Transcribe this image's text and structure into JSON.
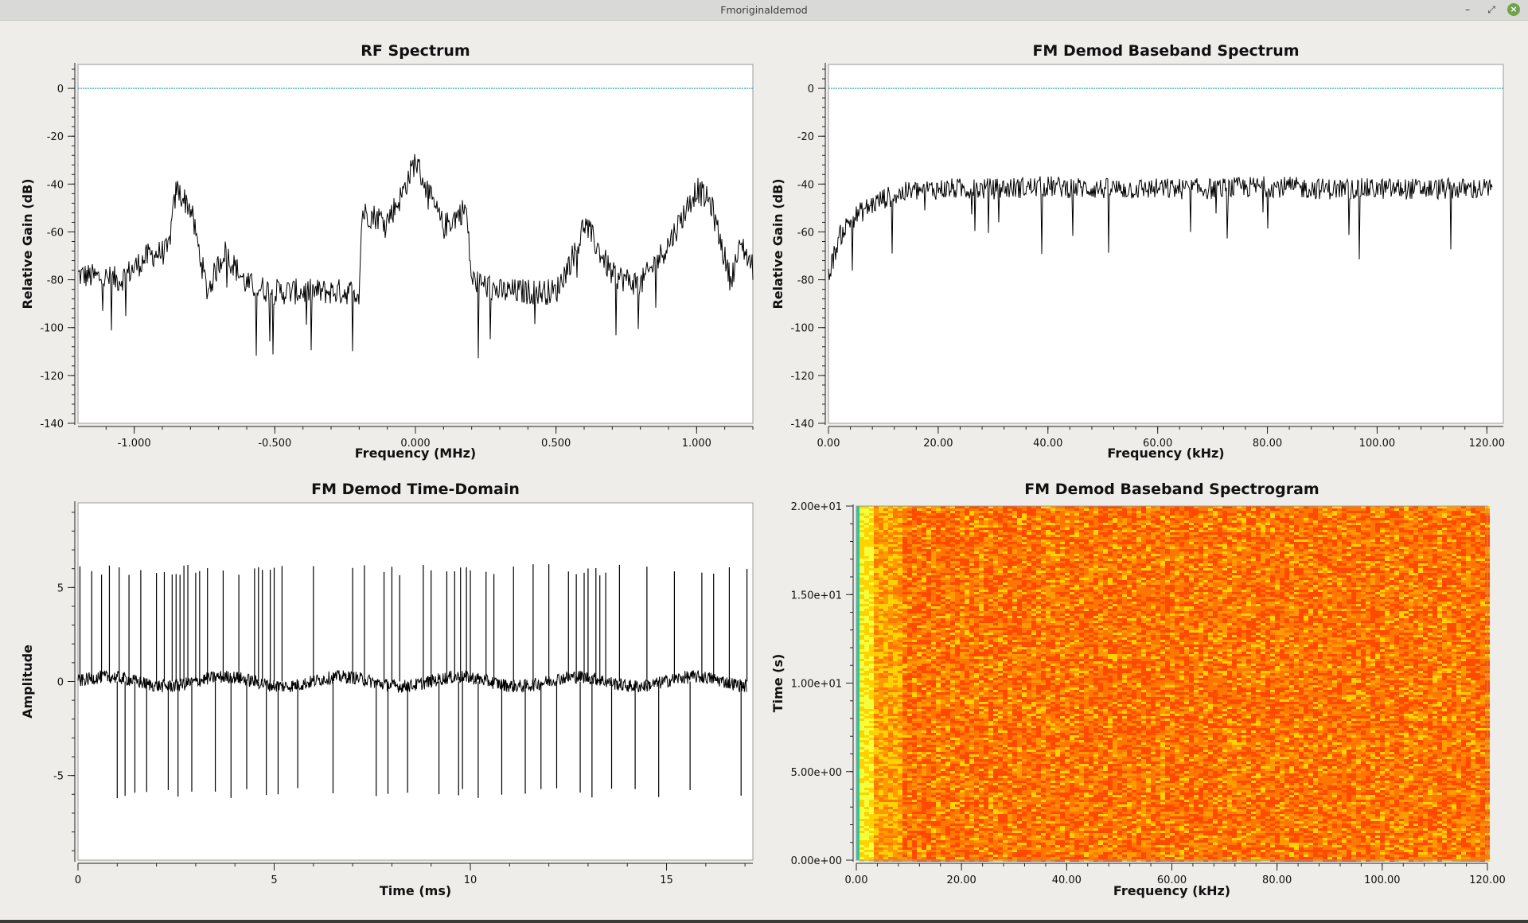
{
  "window": {
    "title": "Fmoriginaldemod",
    "minimize_icon": "minimize-icon",
    "restore_icon": "restore-icon",
    "close_icon": "close-icon"
  },
  "colors": {
    "accent_close": "#6ea54b",
    "trace": "#000000",
    "ref_line": "#1aa0b4"
  },
  "chart_data": [
    {
      "type": "line",
      "title": "RF Spectrum",
      "xlabel": "Frequency (MHz)",
      "ylabel": "Relative Gain (dB)",
      "xlim": [
        -1.2,
        1.2
      ],
      "ylim": [
        -140,
        10
      ],
      "xticks": [
        "-1.000",
        "-0.500",
        "0.000",
        "0.500",
        "1.000"
      ],
      "xtick_values": [
        -1.0,
        -0.5,
        0.0,
        0.5,
        1.0
      ],
      "yticks": [
        "0",
        "-20",
        "-40",
        "-60",
        "-80",
        "-100",
        "-120",
        "-140"
      ],
      "ytick_values": [
        0,
        -20,
        -40,
        -60,
        -80,
        -100,
        -120,
        -140
      ],
      "reference_line": 0,
      "series": [
        {
          "x": [
            -1.2,
            -1.05,
            -0.95,
            -0.88,
            -0.85,
            -0.8,
            -0.74,
            -0.68,
            -0.6,
            -0.5,
            -0.35,
            -0.2,
            -0.19,
            -0.1,
            -0.05,
            0.0,
            0.05,
            0.1,
            0.18,
            0.2,
            0.3,
            0.5,
            0.58,
            0.6,
            0.7,
            0.8,
            0.9,
            1.0,
            1.05,
            1.12,
            1.16,
            1.2
          ],
          "y": [
            -78,
            -80,
            -70,
            -68,
            -42,
            -50,
            -85,
            -68,
            -82,
            -85,
            -85,
            -85,
            -52,
            -55,
            -45,
            -30,
            -45,
            -58,
            -50,
            -80,
            -85,
            -85,
            -65,
            -56,
            -78,
            -82,
            -65,
            -42,
            -48,
            -80,
            -65,
            -75
          ]
        }
      ]
    },
    {
      "type": "line",
      "title": "FM Demod Baseband Spectrum",
      "xlabel": "Frequency (kHz)",
      "ylabel": "Relative Gain (dB)",
      "xlim": [
        0,
        123
      ],
      "ylim": [
        -140,
        10
      ],
      "xticks": [
        "0.00",
        "20.00",
        "40.00",
        "60.00",
        "80.00",
        "100.00",
        "120.00"
      ],
      "xtick_values": [
        0,
        20,
        40,
        60,
        80,
        100,
        120
      ],
      "yticks": [
        "0",
        "-20",
        "-40",
        "-60",
        "-80",
        "-100",
        "-120",
        "-140"
      ],
      "ytick_values": [
        0,
        -20,
        -40,
        -60,
        -80,
        -100,
        -120,
        -140
      ],
      "reference_line": 0,
      "series": [
        {
          "x": [
            0,
            1,
            2,
            4,
            7,
            10,
            15,
            20,
            30,
            40,
            50,
            60,
            70,
            80,
            90,
            100,
            110,
            120
          ],
          "y": [
            -78,
            -70,
            -62,
            -55,
            -50,
            -46,
            -43,
            -42,
            -42,
            -41,
            -42,
            -42,
            -42,
            -41,
            -42,
            -42,
            -42,
            -42
          ]
        }
      ]
    },
    {
      "type": "line",
      "title": "FM Demod Time-Domain",
      "xlabel": "Time (ms)",
      "ylabel": "Amplitude",
      "xlim": [
        0,
        17.2
      ],
      "ylim": [
        -9.5,
        9.5
      ],
      "xticks": [
        "0",
        "5",
        "10",
        "15"
      ],
      "xtick_values": [
        0,
        5,
        10,
        15
      ],
      "yticks": [
        "5",
        "0",
        "-5"
      ],
      "ytick_values": [
        5,
        0,
        -5
      ],
      "series": [
        {
          "spike_times": [
            0.05,
            0.35,
            0.6,
            0.8,
            1.0,
            1.05,
            1.2,
            1.3,
            1.45,
            1.6,
            1.75,
            2.0,
            2.2,
            2.3,
            2.4,
            2.5,
            2.55,
            2.6,
            2.7,
            2.8,
            2.9,
            3.0,
            3.1,
            3.3,
            3.5,
            3.7,
            3.9,
            4.1,
            4.3,
            4.5,
            4.6,
            4.7,
            4.8,
            4.9,
            5.0,
            5.1,
            5.2,
            5.6,
            6.0,
            6.5,
            7.0,
            7.3,
            7.6,
            7.8,
            7.9,
            8.0,
            8.2,
            8.4,
            8.8,
            9.0,
            9.2,
            9.4,
            9.6,
            9.7,
            9.75,
            9.8,
            9.9,
            10.0,
            10.2,
            10.4,
            10.6,
            10.8,
            11.1,
            11.4,
            11.6,
            11.8,
            12.0,
            12.2,
            12.5,
            12.7,
            12.8,
            12.9,
            13.0,
            13.1,
            13.2,
            13.3,
            13.45,
            13.6,
            13.8,
            14.2,
            14.5,
            14.8,
            15.2,
            15.6,
            15.9,
            16.2,
            16.6,
            16.9,
            17.05
          ],
          "spike_signs": [
            1,
            1,
            1,
            1,
            -1,
            1,
            -1,
            1,
            -1,
            1,
            -1,
            1,
            1,
            -1,
            1,
            1,
            -1,
            1,
            1,
            1,
            -1,
            1,
            1,
            1,
            -1,
            1,
            -1,
            1,
            -1,
            1,
            1,
            1,
            -1,
            1,
            1,
            -1,
            1,
            -1,
            1,
            -1,
            1,
            1,
            -1,
            1,
            -1,
            1,
            1,
            -1,
            1,
            1,
            -1,
            1,
            1,
            -1,
            1,
            -1,
            1,
            1,
            -1,
            1,
            1,
            -1,
            1,
            -1,
            1,
            -1,
            1,
            -1,
            1,
            1,
            -1,
            1,
            1,
            -1,
            1,
            1,
            1,
            -1,
            1,
            -1,
            1,
            -1,
            1,
            -1,
            1,
            1,
            1,
            -1,
            1
          ],
          "spike_amplitude": 6.0,
          "baseline_noise": 0.5
        }
      ]
    },
    {
      "type": "heatmap",
      "title": "FM Demod Baseband Spectrogram",
      "xlabel": "Frequency (kHz)",
      "ylabel": "Time (s)",
      "xlim": [
        0,
        120
      ],
      "ylim": [
        0,
        20
      ],
      "xticks": [
        "0.00",
        "20.00",
        "40.00",
        "60.00",
        "80.00",
        "100.00",
        "120.00"
      ],
      "xtick_values": [
        0,
        20,
        40,
        60,
        80,
        100,
        120
      ],
      "yticks": [
        "0.00e+00",
        "5.00e+00",
        "1.00e+01",
        "1.50e+01",
        "2.00e+01"
      ],
      "ytick_values": [
        0,
        5,
        10,
        15,
        20
      ],
      "colormap": [
        "#ff4a00",
        "#ff7700",
        "#ff9a00",
        "#ffd200",
        "#f4ff3c",
        "#28c8a0"
      ],
      "edge_band_khz": 1.2
    }
  ]
}
